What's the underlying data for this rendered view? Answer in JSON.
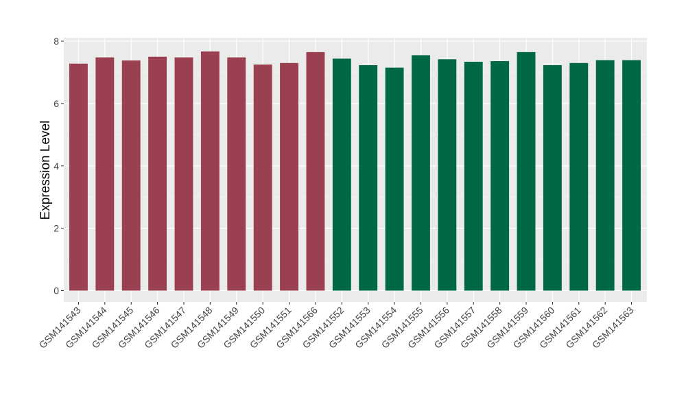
{
  "chart_data": {
    "type": "bar",
    "title": "",
    "xlabel": "",
    "ylabel": "Expression Level",
    "ylim": [
      0,
      8
    ],
    "yticks": [
      0,
      2,
      4,
      6,
      8
    ],
    "grid": true,
    "panel_background": "#EBEBEB",
    "categories": [
      "GSM141543",
      "GSM141544",
      "GSM141545",
      "GSM141546",
      "GSM141547",
      "GSM141548",
      "GSM141549",
      "GSM141550",
      "GSM141551",
      "GSM141566",
      "GSM141552",
      "GSM141553",
      "GSM141554",
      "GSM141555",
      "GSM141556",
      "GSM141557",
      "GSM141558",
      "GSM141559",
      "GSM141560",
      "GSM141561",
      "GSM141562",
      "GSM141563"
    ],
    "values": [
      7.28,
      7.48,
      7.38,
      7.5,
      7.48,
      7.67,
      7.48,
      7.25,
      7.3,
      7.65,
      7.44,
      7.23,
      7.15,
      7.55,
      7.42,
      7.34,
      7.36,
      7.65,
      7.23,
      7.3,
      7.39,
      7.39
    ],
    "groups": [
      "A",
      "A",
      "A",
      "A",
      "A",
      "A",
      "A",
      "A",
      "A",
      "A",
      "B",
      "B",
      "B",
      "B",
      "B",
      "B",
      "B",
      "B",
      "B",
      "B",
      "B",
      "B"
    ],
    "group_colors": {
      "A": "#9A4050",
      "B": "#006747"
    }
  }
}
